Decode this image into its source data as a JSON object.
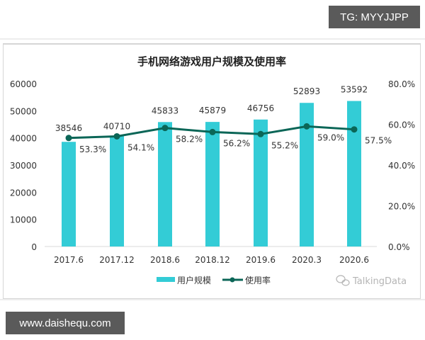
{
  "watermarks": {
    "top_tag": "TG: MYYJJPP",
    "bottom_tag": "www.daishequ.com",
    "source_logo": "TalkingData"
  },
  "colors": {
    "bar": "#33ccd6",
    "line": "#0b6657",
    "axis_text": "#333333",
    "tag_bg": "#5a5a5a"
  },
  "chart_data": {
    "type": "bar+line",
    "title": "手机网络游戏用户规模及使用率",
    "categories": [
      "2017.6",
      "2017.12",
      "2018.6",
      "2018.12",
      "2019.6",
      "2020.3",
      "2020.6"
    ],
    "series": [
      {
        "name": "用户规模",
        "type": "bar",
        "axis": "left",
        "values": [
          38546,
          40710,
          45833,
          45879,
          46756,
          52893,
          53592
        ],
        "labels": [
          "38546",
          "40710",
          "45833",
          "45879",
          "46756",
          "52893",
          "53592"
        ]
      },
      {
        "name": "使用率",
        "type": "line",
        "axis": "right",
        "values": [
          53.3,
          54.1,
          58.2,
          56.2,
          55.2,
          59.0,
          57.5
        ],
        "labels": [
          "53.3%",
          "54.1%",
          "58.2%",
          "56.2%",
          "55.2%",
          "59.0%",
          "57.5%"
        ]
      }
    ],
    "left_axis": {
      "ylim": [
        0,
        60000
      ],
      "ticks": [
        "0",
        "10000",
        "20000",
        "30000",
        "40000",
        "50000",
        "60000"
      ]
    },
    "right_axis": {
      "ylim": [
        0,
        80
      ],
      "ticks": [
        "0.0%",
        "20.0%",
        "40.0%",
        "60.0%",
        "80.0%"
      ]
    },
    "xlabel": "",
    "ylabel": "",
    "grid": false,
    "legend": {
      "position": "bottom",
      "entries": [
        "用户规模",
        "使用率"
      ]
    }
  }
}
